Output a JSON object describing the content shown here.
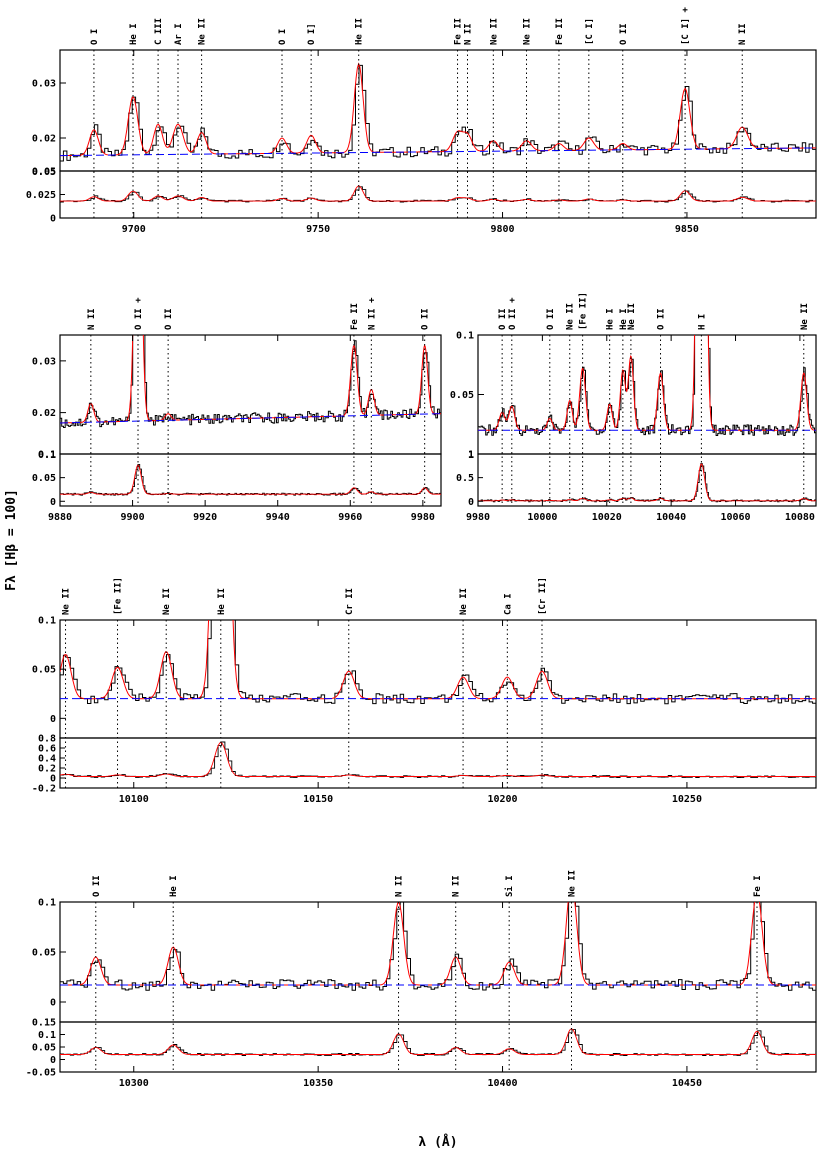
{
  "figure": {
    "ylabel": "Fλ [Hβ = 100]",
    "xlabel": "λ (Å)"
  },
  "chart_data": [
    {
      "type": "line",
      "id": "p1",
      "xlim": [
        9680,
        9885
      ],
      "xticks": [
        9700,
        9750,
        9800,
        9850
      ],
      "top": {
        "ylim": [
          0.014,
          0.036
        ],
        "yticks": [
          0.02,
          0.03
        ],
        "yticklabels": [
          "0.02",
          "0.03"
        ],
        "ymax_label": "0.05",
        "continuum": [
          [
            9680,
            0.0168
          ],
          [
            9885,
            0.0182
          ]
        ]
      },
      "bottom": {
        "ylim": [
          0,
          0.05
        ],
        "yticks": [
          0,
          0.025,
          0.05
        ],
        "yticklabels": [
          "0",
          "0.025",
          "0.05"
        ],
        "base": 0.018
      },
      "lines": [
        {
          "label": "O I",
          "wave": 9689.2,
          "peak": 0.0215,
          "width": 1.2
        },
        {
          "label": "He I",
          "wave": 9699.8,
          "peak": 0.0275,
          "width": 1.3
        },
        {
          "label": "C III",
          "wave": 9706.6,
          "peak": 0.0225,
          "width": 1.2
        },
        {
          "label": "Ar I",
          "wave": 9712.0,
          "peak": 0.0225,
          "width": 1.4
        },
        {
          "label": "Ne II",
          "wave": 9718.4,
          "peak": 0.021,
          "width": 1.2
        },
        {
          "label": "O I",
          "wave": 9740.2,
          "peak": 0.02,
          "width": 1.2
        },
        {
          "label": "O I]",
          "wave": 9748.1,
          "peak": 0.0205,
          "width": 1.2
        },
        {
          "label": "He II",
          "wave": 9761.0,
          "peak": 0.0335,
          "width": 1.2
        },
        {
          "label": "Fe II",
          "wave": 9787.8,
          "peak": 0.021,
          "width": 1.3
        },
        {
          "label": "N II",
          "wave": 9790.5,
          "peak": 0.0205,
          "width": 1.2
        },
        {
          "label": "Ne II",
          "wave": 9797.5,
          "peak": 0.0195,
          "width": 1.2
        },
        {
          "label": "Ne II",
          "wave": 9806.5,
          "peak": 0.0195,
          "width": 1.3
        },
        {
          "label": "Fe II",
          "wave": 9815.3,
          "peak": 0.019,
          "width": 1.2
        },
        {
          "label": "[C I]",
          "wave": 9823.4,
          "peak": 0.02,
          "width": 1.3
        },
        {
          "label": "O II",
          "wave": 9832.6,
          "peak": 0.019,
          "width": 1.2
        },
        {
          "label": "[C I] +",
          "wave": 9849.5,
          "peak": 0.029,
          "width": 1.3
        },
        {
          "label": "N II",
          "wave": 9865.0,
          "peak": 0.022,
          "width": 1.5
        }
      ]
    },
    {
      "type": "line",
      "id": "p2",
      "xlim": [
        9880,
        9985
      ],
      "xticks": [
        9880,
        9900,
        9920,
        9940,
        9960,
        9980
      ],
      "top": {
        "ylim": [
          0.012,
          0.035
        ],
        "yticks": [
          0.02,
          0.03
        ],
        "yticklabels": [
          "0.02",
          "0.03"
        ],
        "ymax_label": "0.1",
        "continuum": [
          [
            9880,
            0.018
          ],
          [
            9985,
            0.0198
          ]
        ]
      },
      "bottom": {
        "ylim": [
          -0.01,
          0.1
        ],
        "yticks": [
          0,
          0.05,
          0.1
        ],
        "yticklabels": [
          "0",
          "0.05",
          "0.1"
        ],
        "base": 0.015
      },
      "lines": [
        {
          "label": "N II",
          "wave": 9888.5,
          "peak": 0.0218,
          "width": 0.8
        },
        {
          "label": "O II +",
          "wave": 9901.5,
          "peak": 0.08,
          "width": 0.9
        },
        {
          "label": "O II",
          "wave": 9909.8,
          "peak": 0.0198,
          "width": 0.8
        },
        {
          "label": "Fe II",
          "wave": 9961.0,
          "peak": 0.033,
          "width": 0.9
        },
        {
          "label": "N II +",
          "wave": 9965.8,
          "peak": 0.0245,
          "width": 0.8
        },
        {
          "label": "O II",
          "wave": 9980.5,
          "peak": 0.033,
          "width": 0.8
        }
      ]
    },
    {
      "type": "line",
      "id": "p3",
      "xlim": [
        9980,
        10085
      ],
      "xticks": [
        9980,
        10000,
        10020,
        10040,
        10060,
        10080
      ],
      "top": {
        "ylim": [
          0.0,
          0.1
        ],
        "yticks": [
          0.05,
          0.1
        ],
        "yticklabels": [
          "0.05",
          "0.1"
        ],
        "ymax_label": "1",
        "continuum": [
          [
            9980,
            0.02
          ],
          [
            10085,
            0.02
          ]
        ]
      },
      "bottom": {
        "ylim": [
          -0.1,
          1.0
        ],
        "yticks": [
          0,
          0.5,
          1.0
        ],
        "yticklabels": [
          "0",
          "0.5",
          "1"
        ],
        "base": 0.01
      },
      "lines": [
        {
          "label": "O II",
          "wave": 9987.5,
          "peak": 0.035,
          "width": 0.9
        },
        {
          "label": "O II +",
          "wave": 9990.5,
          "peak": 0.04,
          "width": 0.9
        },
        {
          "label": "O II",
          "wave": 10002.3,
          "peak": 0.03,
          "width": 0.8
        },
        {
          "label": "Ne II",
          "wave": 10008.5,
          "peak": 0.045,
          "width": 0.8
        },
        {
          "label": "[Fe II]",
          "wave": 10012.5,
          "peak": 0.072,
          "width": 0.9
        },
        {
          "label": "He I",
          "wave": 10020.9,
          "peak": 0.042,
          "width": 0.8
        },
        {
          "label": "He I",
          "wave": 10025.0,
          "peak": 0.07,
          "width": 0.8
        },
        {
          "label": "Ne II",
          "wave": 10027.5,
          "peak": 0.082,
          "width": 0.8
        },
        {
          "label": "O II",
          "wave": 10036.7,
          "peak": 0.068,
          "width": 0.9
        },
        {
          "label": "H I",
          "wave": 10049.4,
          "peak": 0.8,
          "width": 1.0
        },
        {
          "label": "Ne II",
          "wave": 10081.2,
          "peak": 0.068,
          "width": 0.9
        }
      ]
    },
    {
      "type": "line",
      "id": "p4",
      "xlim": [
        10080,
        10285
      ],
      "xticks": [
        10100,
        10150,
        10200,
        10250
      ],
      "top": {
        "ylim": [
          -0.02,
          0.1
        ],
        "yticks": [
          0,
          0.05,
          0.1
        ],
        "yticklabels": [
          "0",
          "0.05",
          "0.1"
        ],
        "ymax_label": "",
        "continuum": [
          [
            10080,
            0.02
          ],
          [
            10285,
            0.02
          ]
        ]
      },
      "bottom": {
        "ylim": [
          -0.2,
          0.8
        ],
        "yticks": [
          -0.2,
          0,
          0.2,
          0.4,
          0.6,
          0.8
        ],
        "yticklabels": [
          "-0.2",
          "0",
          "0.2",
          "0.4",
          "0.6",
          "0.8"
        ],
        "base": 0.03
      },
      "lines": [
        {
          "label": "Ne II",
          "wave": 10081.5,
          "peak": 0.065,
          "width": 1.5
        },
        {
          "label": "[Fe II]",
          "wave": 10095.6,
          "peak": 0.052,
          "width": 1.5
        },
        {
          "label": "Ne II",
          "wave": 10108.8,
          "peak": 0.068,
          "width": 1.5
        },
        {
          "label": "He II",
          "wave": 10123.6,
          "peak": 0.7,
          "width": 1.6
        },
        {
          "label": "Cr II",
          "wave": 10158.3,
          "peak": 0.048,
          "width": 1.5
        },
        {
          "label": "Ne II",
          "wave": 10189.3,
          "peak": 0.042,
          "width": 1.5
        },
        {
          "label": "Ca I",
          "wave": 10201.3,
          "peak": 0.042,
          "width": 1.5
        },
        {
          "label": "[Cr II]",
          "wave": 10210.7,
          "peak": 0.048,
          "width": 1.5
        }
      ]
    },
    {
      "type": "line",
      "id": "p5",
      "xlim": [
        10280,
        10485
      ],
      "xticks": [
        10300,
        10350,
        10400,
        10450
      ],
      "top": {
        "ylim": [
          -0.02,
          0.1
        ],
        "yticks": [
          0,
          0.05,
          0.1
        ],
        "yticklabels": [
          "0",
          "0.05",
          "0.1"
        ],
        "ymax_label": "",
        "continuum": [
          [
            10280,
            0.017
          ],
          [
            10485,
            0.017
          ]
        ]
      },
      "bottom": {
        "ylim": [
          -0.05,
          0.15
        ],
        "yticks": [
          -0.05,
          0,
          0.05,
          0.1,
          0.15
        ],
        "yticklabels": [
          "-0.05",
          "0",
          "0.05",
          "0.1",
          "0.15"
        ],
        "base": 0.02
      },
      "lines": [
        {
          "label": "O II",
          "wave": 10289.7,
          "peak": 0.045,
          "width": 1.4
        },
        {
          "label": "He I",
          "wave": 10310.7,
          "peak": 0.055,
          "width": 1.4
        },
        {
          "label": "N II",
          "wave": 10371.8,
          "peak": 0.1,
          "width": 1.4
        },
        {
          "label": "N II",
          "wave": 10387.3,
          "peak": 0.045,
          "width": 1.4
        },
        {
          "label": "Si I",
          "wave": 10401.8,
          "peak": 0.04,
          "width": 1.4
        },
        {
          "label": "Ne II",
          "wave": 10418.7,
          "peak": 0.12,
          "width": 1.4
        },
        {
          "label": "Fe I",
          "wave": 10469.0,
          "peak": 0.11,
          "width": 1.4
        }
      ]
    }
  ]
}
